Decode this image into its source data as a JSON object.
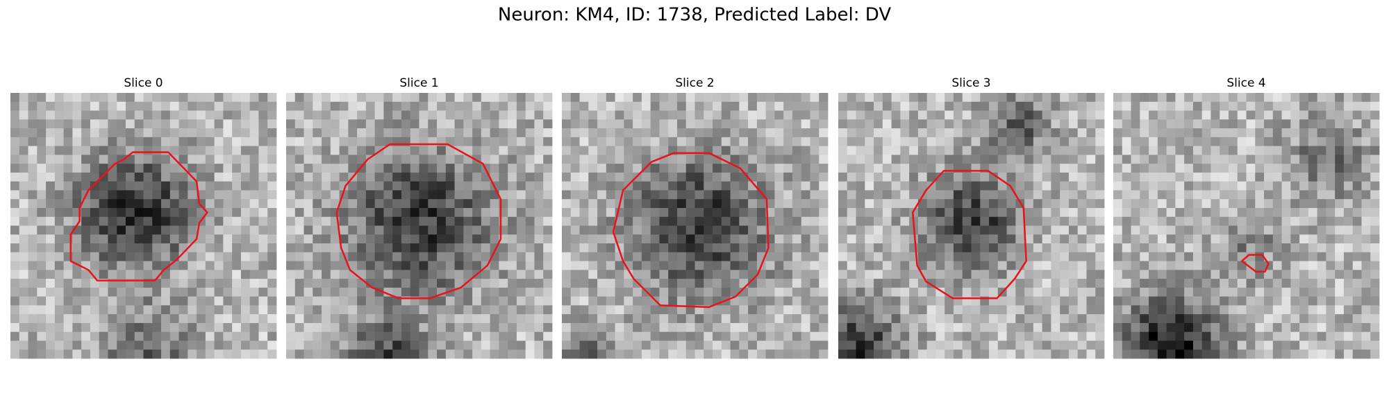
{
  "title": "Neuron: KM4, ID: 1738, Predicted Label: DV",
  "panels": [
    {
      "label": "Slice 0"
    },
    {
      "label": "Slice 1"
    },
    {
      "label": "Slice 2"
    },
    {
      "label": "Slice 3"
    },
    {
      "label": "Slice 4"
    }
  ]
}
